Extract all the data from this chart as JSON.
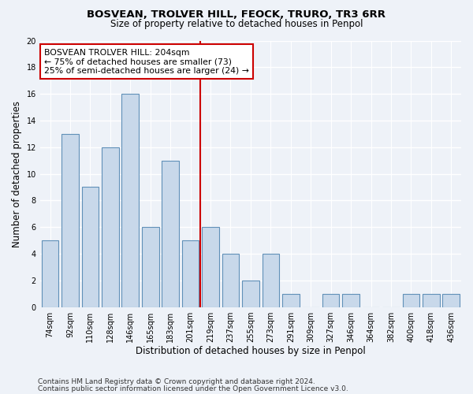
{
  "title": "BOSVEAN, TROLVER HILL, FEOCK, TRURO, TR3 6RR",
  "subtitle": "Size of property relative to detached houses in Penpol",
  "xlabel": "Distribution of detached houses by size in Penpol",
  "ylabel": "Number of detached properties",
  "footer1": "Contains HM Land Registry data © Crown copyright and database right 2024.",
  "footer2": "Contains public sector information licensed under the Open Government Licence v3.0.",
  "bar_color": "#c8d8ea",
  "bar_edge_color": "#6090b8",
  "reference_line_color": "#cc0000",
  "annotation_title": "BOSVEAN TROLVER HILL: 204sqm",
  "annotation_line1": "← 75% of detached houses are smaller (73)",
  "annotation_line2": "25% of semi-detached houses are larger (24) →",
  "annotation_box_color": "#ffffff",
  "annotation_box_edge": "#cc0000",
  "categories": [
    "74sqm",
    "92sqm",
    "110sqm",
    "128sqm",
    "146sqm",
    "165sqm",
    "183sqm",
    "201sqm",
    "219sqm",
    "237sqm",
    "255sqm",
    "273sqm",
    "291sqm",
    "309sqm",
    "327sqm",
    "346sqm",
    "364sqm",
    "382sqm",
    "400sqm",
    "418sqm",
    "436sqm"
  ],
  "values": [
    5,
    13,
    9,
    12,
    16,
    6,
    11,
    5,
    6,
    4,
    2,
    4,
    1,
    0,
    1,
    1,
    0,
    0,
    1,
    1,
    1
  ],
  "ylim": [
    0,
    20
  ],
  "yticks": [
    0,
    2,
    4,
    6,
    8,
    10,
    12,
    14,
    16,
    18,
    20
  ],
  "background_color": "#eef2f8",
  "grid_color": "#ffffff",
  "ref_idx": 7
}
